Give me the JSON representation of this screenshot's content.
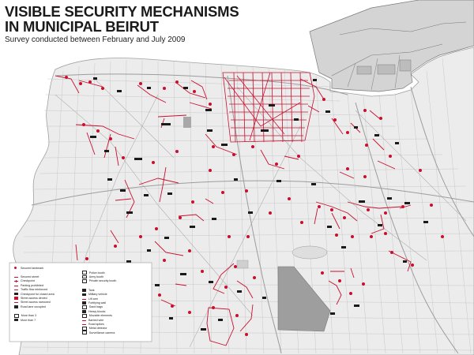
{
  "title_line1": "VISIBLE SECURITY MECHANISMS",
  "title_line2": "IN MUNICIPAL BEIRUT",
  "subtitle": "Survey conducted between February and July 2009",
  "colors": {
    "accent_red": "#c8102e",
    "street_gray": "#b5b5b5",
    "sea_gray": "#d8d8d8",
    "port_gray": "#8a8a8a",
    "park_gray": "#9a9a9a",
    "text_black": "#1a1a1a"
  },
  "legend": {
    "col1": [
      {
        "icon": "secured-landmark-icon",
        "label": "Secured landmark"
      },
      {
        "icon": "secured-street-icon",
        "label": "Secured street"
      },
      {
        "icon": "checkpoint-icon",
        "label": "Checkpoint"
      },
      {
        "icon": "parking-prohibited-icon",
        "label": "Parking prohibited"
      },
      {
        "icon": "traffic-flow-reinforced-icon",
        "label": "Traffic flow reinforced"
      },
      {
        "icon": "checkpoint-closed-area-icon",
        "label": "Checkpoint for closed area"
      },
      {
        "icon": "street-access-denied-icon",
        "label": "Street access denied"
      },
      {
        "icon": "street-access-narrowed-icon",
        "label": "Street access narrowed"
      },
      {
        "icon": "road-lane-occupied-icon",
        "label": "Road lane occupied"
      },
      {
        "icon": "more-than-3-icon",
        "label": "More than 3"
      },
      {
        "icon": "more-than-7-icon",
        "label": "More than 7"
      }
    ],
    "col2": [
      {
        "icon": "police-booth-icon",
        "label": "Police booth"
      },
      {
        "icon": "army-booth-icon",
        "label": "Army booth"
      },
      {
        "icon": "private-security-booth-icon",
        "label": "Private security booth"
      },
      {
        "icon": "tank-icon",
        "label": "Tank"
      },
      {
        "icon": "military-vehicle-icon",
        "label": "Military vehicle"
      },
      {
        "icon": "lift-arm-icon",
        "label": "Lift arm"
      },
      {
        "icon": "fortifying-wall-icon",
        "label": "Fortifying wall"
      },
      {
        "icon": "sand-bags-icon",
        "label": "Sand bags"
      },
      {
        "icon": "heavy-blocks-icon",
        "label": "Heavy blocks"
      },
      {
        "icon": "movable-elements-icon",
        "label": "Movable elements"
      },
      {
        "icon": "barbed-wire-icon",
        "label": "Barbed wire"
      },
      {
        "icon": "road-spikes-icon",
        "label": "Road spikes"
      },
      {
        "icon": "metal-detector-icon",
        "label": "Metal detector"
      },
      {
        "icon": "surveillance-camera-icon",
        "label": "Surveillance camera"
      }
    ]
  }
}
